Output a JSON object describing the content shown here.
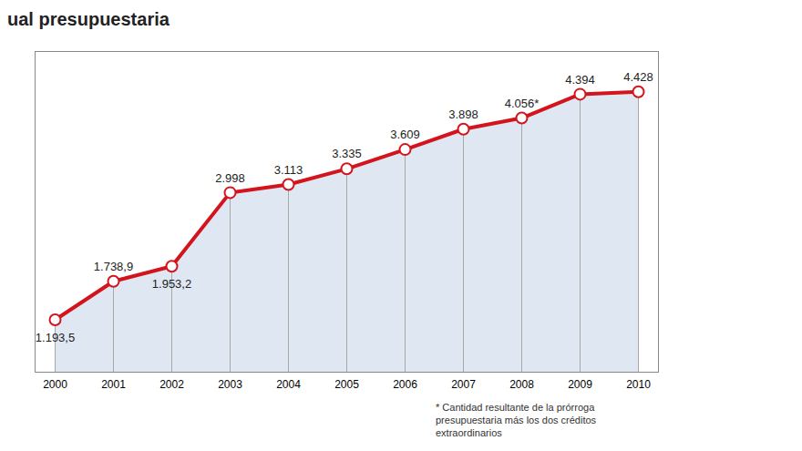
{
  "chart_data": {
    "type": "line",
    "title": "ual presupuestaria",
    "categories": [
      "2000",
      "2001",
      "2002",
      "2003",
      "2004",
      "2005",
      "2006",
      "2007",
      "2008",
      "2009",
      "2010"
    ],
    "values": [
      1193.5,
      1738.9,
      1953.2,
      2998,
      3113,
      3335,
      3609,
      3898,
      4056,
      4394,
      4428
    ],
    "value_labels": [
      "1.193,5",
      "1.738,9",
      "1.953,2",
      "2.998",
      "3.113",
      "3.335",
      "3.609",
      "3.898",
      "4.056*",
      "4.394",
      "4.428"
    ],
    "data_labels": true,
    "color": "#d3141c",
    "ylim": [
      450,
      5000
    ],
    "yticks": [],
    "tick_labels": "x",
    "grid": true,
    "marker": "circle",
    "annotations": [
      "* Cantidad resultante de la prórroga presupuestaria más los dos créditos extraordinarios"
    ]
  }
}
